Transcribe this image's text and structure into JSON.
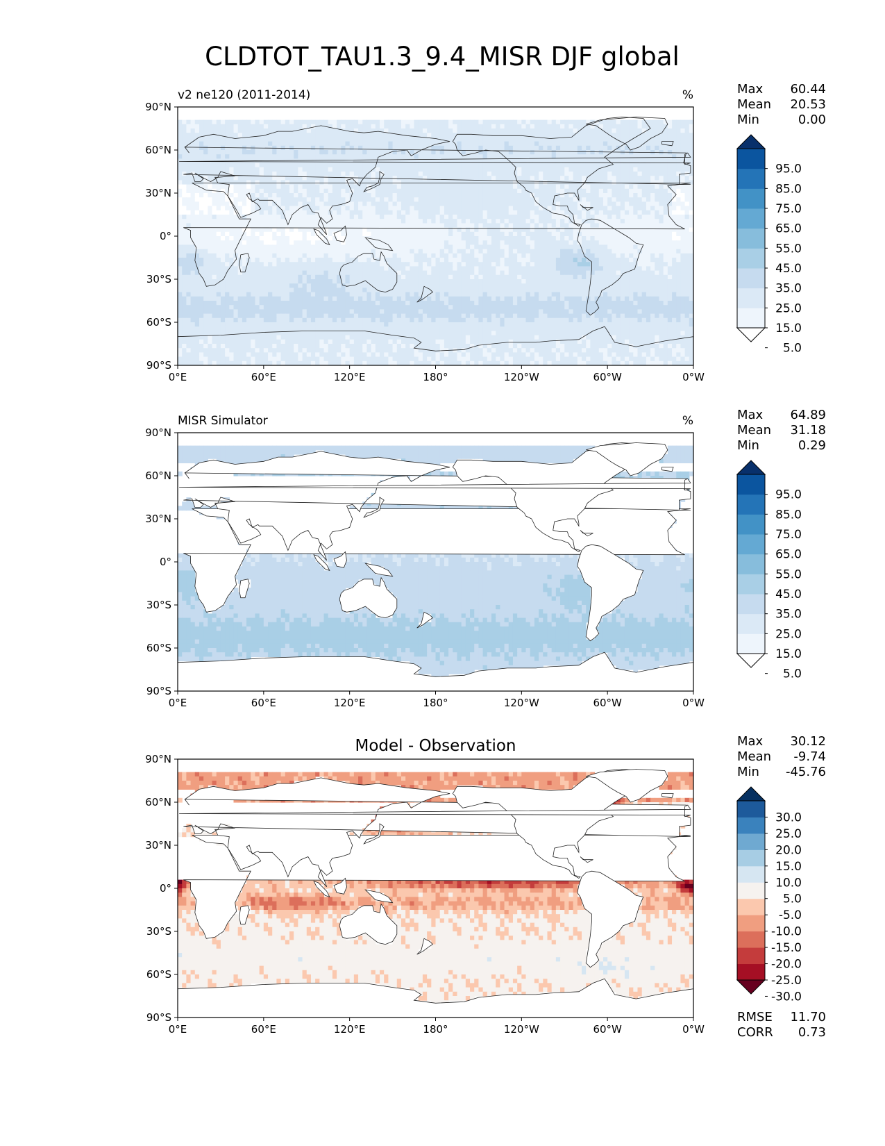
{
  "figure": {
    "title": "CLDTOT_TAU1.3_9.4_MISR DJF global"
  },
  "chart_data": [
    {
      "type": "heatmap",
      "title": "",
      "left_title": "v2 ne120 (2011-2014)",
      "units": "%",
      "stats": [
        {
          "label": "Max",
          "value": "60.44"
        },
        {
          "label": "Mean",
          "value": "20.53"
        },
        {
          "label": "Min",
          "value": "0.00"
        }
      ],
      "colorbar": {
        "levels": [
          "5.0",
          "15.0",
          "25.0",
          "35.0",
          "45.0",
          "55.0",
          "65.0",
          "75.0",
          "85.0",
          "95.0"
        ],
        "colors": [
          "#ffffff",
          "#eef5fc",
          "#dbe9f6",
          "#c6dbef",
          "#a9cfe6",
          "#87bddc",
          "#64a9d3",
          "#4292c6",
          "#2474b7",
          "#0b559f",
          "#08306b"
        ]
      },
      "xticks": [
        "0°E",
        "60°E",
        "120°E",
        "180°",
        "120°W",
        "60°W",
        "0°W"
      ],
      "yticks": [
        "90°N",
        "60°N",
        "30°N",
        "0°",
        "30°S",
        "60°S",
        "90°S"
      ],
      "xlim": [
        0,
        360
      ],
      "ylim": [
        -90,
        90
      ],
      "land_masked": false
    },
    {
      "type": "heatmap",
      "title": "",
      "left_title": "MISR Simulator",
      "units": "%",
      "stats": [
        {
          "label": "Max",
          "value": "64.89"
        },
        {
          "label": "Mean",
          "value": "31.18"
        },
        {
          "label": "Min",
          "value": "0.29"
        }
      ],
      "colorbar": {
        "levels": [
          "5.0",
          "15.0",
          "25.0",
          "35.0",
          "45.0",
          "55.0",
          "65.0",
          "75.0",
          "85.0",
          "95.0"
        ],
        "colors": [
          "#ffffff",
          "#eef5fc",
          "#dbe9f6",
          "#c6dbef",
          "#a9cfe6",
          "#87bddc",
          "#64a9d3",
          "#4292c6",
          "#2474b7",
          "#0b559f",
          "#08306b"
        ]
      },
      "xticks": [
        "0°E",
        "60°E",
        "120°E",
        "180°",
        "120°W",
        "60°W",
        "0°W"
      ],
      "yticks": [
        "90°N",
        "60°N",
        "30°N",
        "0°",
        "30°S",
        "60°S",
        "90°S"
      ],
      "xlim": [
        0,
        360
      ],
      "ylim": [
        -90,
        90
      ],
      "land_masked": true
    },
    {
      "type": "heatmap",
      "title": "Model - Observation",
      "left_title": "",
      "units": "",
      "stats": [
        {
          "label": "Max",
          "value": "30.12"
        },
        {
          "label": "Mean",
          "value": "-9.74"
        },
        {
          "label": "Min",
          "value": "-45.76"
        }
      ],
      "bottom_stats": [
        {
          "label": "RMSE",
          "value": "11.70"
        },
        {
          "label": "CORR",
          "value": "0.73"
        }
      ],
      "colorbar": {
        "levels": [
          "-30.0",
          "-25.0",
          "-20.0",
          "-15.0",
          "-10.0",
          "-5.0",
          "5.0",
          "10.0",
          "15.0",
          "20.0",
          "25.0",
          "30.0"
        ],
        "colors": [
          "#67001f",
          "#a50f24",
          "#c43c3c",
          "#dc6f5b",
          "#f09e80",
          "#fbc8ae",
          "#f6f2ef",
          "#d6e6f2",
          "#a7cde4",
          "#6fa9d1",
          "#3a82bd",
          "#1d5a9b",
          "#053061"
        ]
      },
      "xticks": [
        "0°E",
        "60°E",
        "120°E",
        "180°",
        "120°W",
        "60°W",
        "0°W"
      ],
      "yticks": [
        "90°N",
        "60°N",
        "30°N",
        "0°",
        "30°S",
        "60°S",
        "90°S"
      ],
      "xlim": [
        0,
        360
      ],
      "ylim": [
        -90,
        90
      ],
      "land_masked": true
    }
  ]
}
